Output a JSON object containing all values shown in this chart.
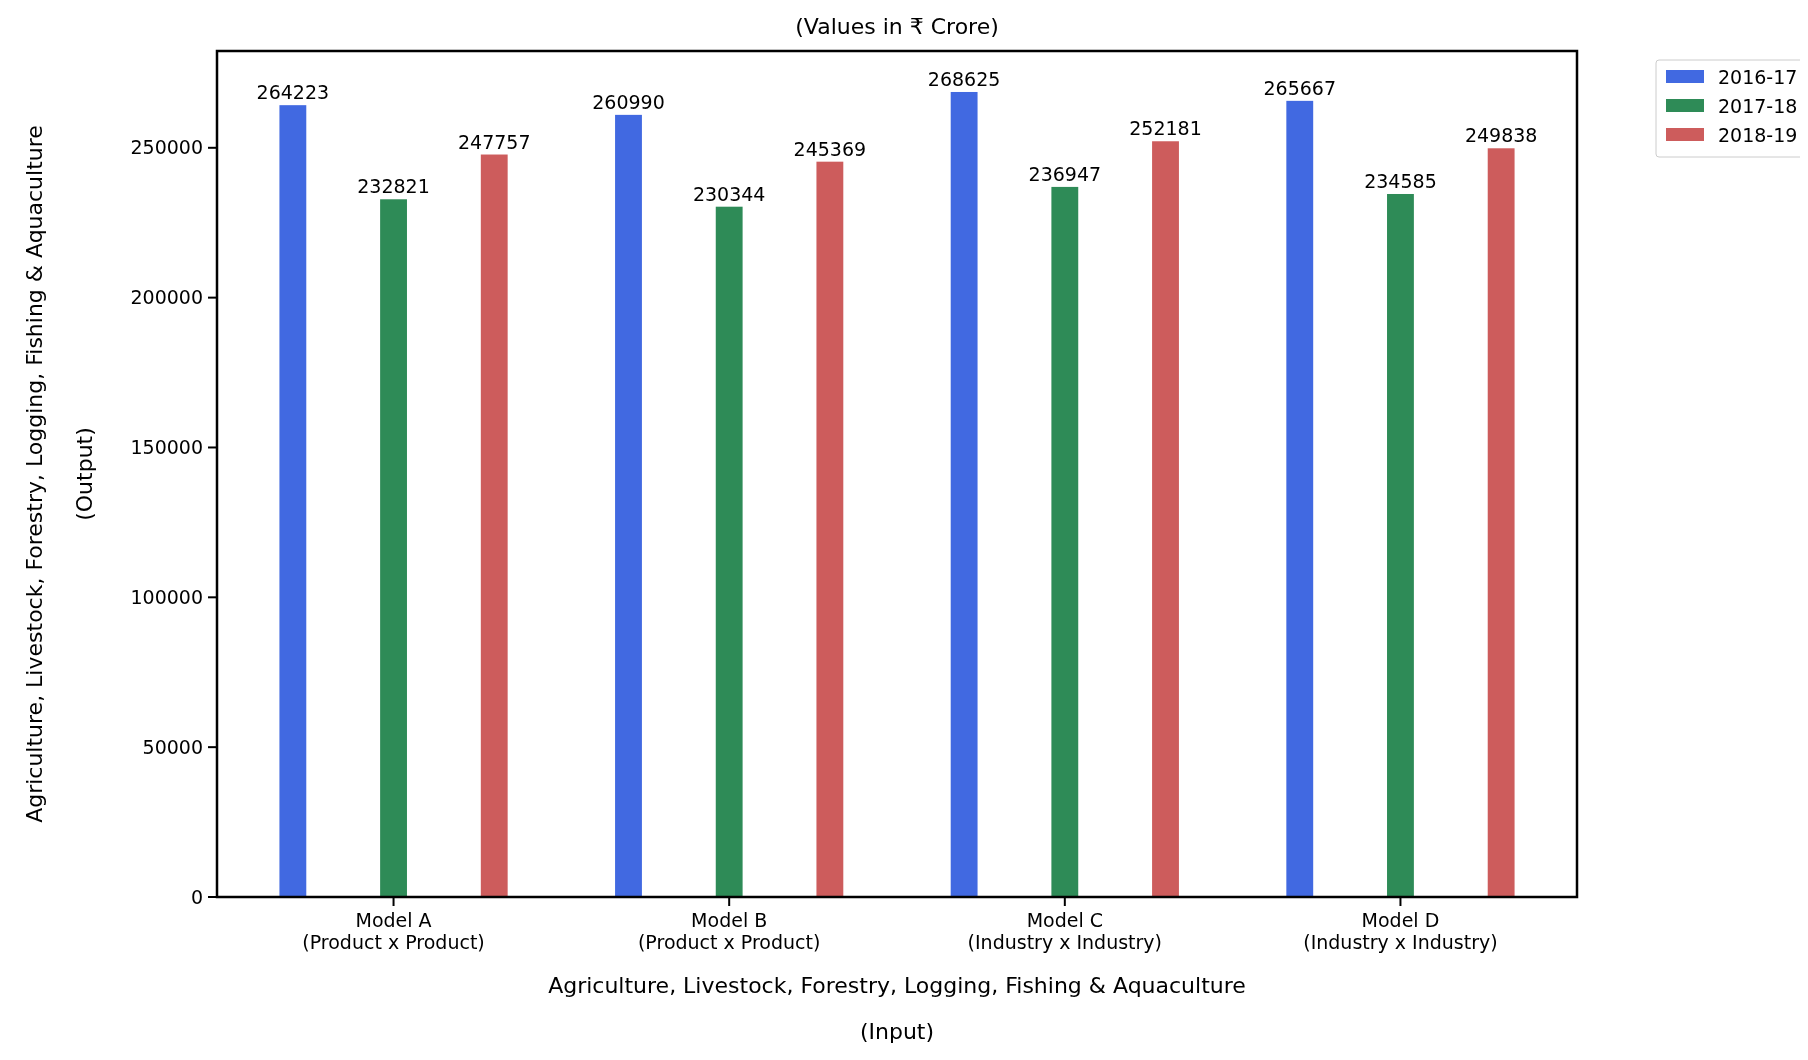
{
  "chart_data": {
    "type": "bar",
    "title": "(Values in ₹ Crore)",
    "xlabel": "Agriculture, Livestock, Forestry, Logging, Fishing & Aquaculture\n(Input)",
    "ylabel": "Agriculture, Livestock, Forestry, Logging, Fishing & Aquaculture\n(Output)",
    "categories": [
      "Model A\n(Product x Product)",
      "Model B\n(Product x Product)",
      "Model C\n(Industry x Industry)",
      "Model D\n(Industry x Industry)"
    ],
    "series": [
      {
        "name": "2016-17",
        "color": "#4169e1",
        "values": [
          264223,
          260990,
          268625,
          265667
        ]
      },
      {
        "name": "2017-18",
        "color": "#2e8b57",
        "values": [
          232821,
          230344,
          236947,
          234585
        ]
      },
      {
        "name": "2018-19",
        "color": "#cd5c5c",
        "values": [
          247757,
          245369,
          252181,
          249838
        ]
      }
    ],
    "ylim": [
      0,
      282300
    ],
    "yticks": [
      0,
      50000,
      100000,
      150000,
      200000,
      250000
    ],
    "data_labels": true,
    "legend": "top right",
    "grid": false
  }
}
